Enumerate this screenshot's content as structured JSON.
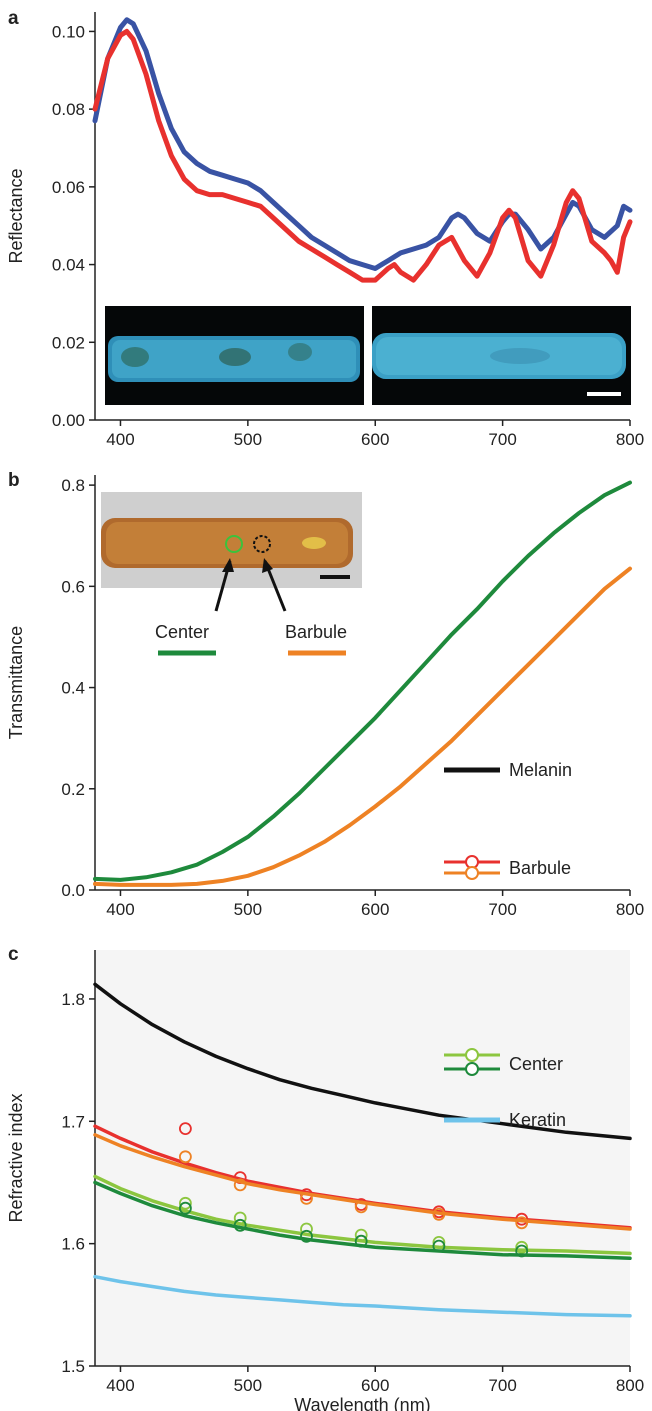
{
  "chart_data": [
    {
      "panel": "a",
      "type": "line",
      "xlabel": "",
      "ylabel": "Reflectance",
      "xlim": [
        380,
        800
      ],
      "ylim": [
        0.0,
        0.105
      ],
      "xticks": [
        400,
        500,
        600,
        700,
        800
      ],
      "xtick_labels": [
        "400",
        "500",
        "600",
        "700",
        "800"
      ],
      "yticks": [
        0.0,
        0.02,
        0.04,
        0.06,
        0.08,
        0.1
      ],
      "ytick_labels": [
        "0.00",
        "0.02",
        "0.04",
        "0.06",
        "0.08",
        "0.10"
      ],
      "inset": "two micrographs of blue-green barbules with a white scale bar",
      "series": [
        {
          "color": "#3953a4",
          "x": [
            380,
            390,
            400,
            405,
            410,
            420,
            430,
            440,
            450,
            460,
            470,
            480,
            490,
            500,
            510,
            520,
            530,
            540,
            550,
            560,
            570,
            580,
            590,
            600,
            610,
            620,
            630,
            640,
            650,
            660,
            665,
            670,
            680,
            690,
            700,
            705,
            710,
            720,
            730,
            740,
            750,
            755,
            760,
            770,
            780,
            790,
            795,
            800
          ],
          "y": [
            0.077,
            0.093,
            0.101,
            0.103,
            0.102,
            0.095,
            0.084,
            0.075,
            0.069,
            0.066,
            0.064,
            0.063,
            0.062,
            0.061,
            0.059,
            0.056,
            0.053,
            0.05,
            0.047,
            0.045,
            0.043,
            0.041,
            0.04,
            0.039,
            0.041,
            0.043,
            0.044,
            0.045,
            0.047,
            0.052,
            0.053,
            0.052,
            0.048,
            0.046,
            0.051,
            0.053,
            0.053,
            0.049,
            0.044,
            0.047,
            0.053,
            0.056,
            0.055,
            0.049,
            0.047,
            0.05,
            0.055,
            0.054
          ]
        },
        {
          "color": "#e8312e",
          "x": [
            380,
            390,
            400,
            405,
            410,
            420,
            430,
            440,
            450,
            460,
            470,
            480,
            490,
            500,
            510,
            520,
            530,
            540,
            550,
            560,
            570,
            580,
            590,
            600,
            610,
            615,
            620,
            630,
            640,
            650,
            660,
            670,
            680,
            690,
            700,
            705,
            710,
            720,
            730,
            740,
            750,
            755,
            760,
            770,
            780,
            785,
            790,
            795,
            800
          ],
          "y": [
            0.08,
            0.093,
            0.099,
            0.1,
            0.098,
            0.089,
            0.077,
            0.068,
            0.062,
            0.059,
            0.058,
            0.058,
            0.057,
            0.056,
            0.055,
            0.052,
            0.049,
            0.046,
            0.044,
            0.042,
            0.04,
            0.038,
            0.036,
            0.036,
            0.039,
            0.04,
            0.038,
            0.036,
            0.04,
            0.045,
            0.047,
            0.041,
            0.037,
            0.043,
            0.052,
            0.054,
            0.052,
            0.041,
            0.037,
            0.045,
            0.056,
            0.059,
            0.057,
            0.046,
            0.043,
            0.041,
            0.038,
            0.047,
            0.051
          ]
        }
      ]
    },
    {
      "panel": "b",
      "type": "line",
      "xlabel": "",
      "ylabel": "Transmittance",
      "xlim": [
        380,
        800
      ],
      "ylim": [
        0.0,
        0.82
      ],
      "xticks": [
        400,
        500,
        600,
        700,
        800
      ],
      "xtick_labels": [
        "400",
        "500",
        "600",
        "700",
        "800"
      ],
      "yticks": [
        0.0,
        0.2,
        0.4,
        0.6,
        0.8
      ],
      "ytick_labels": [
        "0.0",
        "0.2",
        "0.4",
        "0.6",
        "0.8"
      ],
      "inset": "micrograph of a brown barbule with circled center and barbule regions and a black scale bar",
      "series": [
        {
          "name": "Center",
          "color": "#1e8a3c",
          "x": [
            380,
            400,
            420,
            440,
            460,
            480,
            500,
            520,
            540,
            560,
            580,
            600,
            620,
            640,
            660,
            680,
            700,
            720,
            740,
            760,
            780,
            800
          ],
          "y": [
            0.022,
            0.02,
            0.025,
            0.035,
            0.05,
            0.075,
            0.105,
            0.145,
            0.19,
            0.24,
            0.29,
            0.34,
            0.395,
            0.45,
            0.505,
            0.555,
            0.61,
            0.66,
            0.705,
            0.745,
            0.78,
            0.805
          ]
        },
        {
          "name": "Barbule",
          "color": "#ee8224",
          "x": [
            380,
            400,
            420,
            440,
            460,
            480,
            500,
            520,
            540,
            560,
            580,
            600,
            620,
            640,
            660,
            680,
            700,
            720,
            740,
            760,
            780,
            800
          ],
          "y": [
            0.012,
            0.01,
            0.01,
            0.01,
            0.012,
            0.018,
            0.028,
            0.045,
            0.068,
            0.095,
            0.128,
            0.165,
            0.205,
            0.25,
            0.295,
            0.345,
            0.395,
            0.445,
            0.495,
            0.545,
            0.595,
            0.635
          ]
        }
      ]
    },
    {
      "panel": "c",
      "type": "line",
      "xlabel": "Wavelength (nm)",
      "ylabel": "Refractive index",
      "xlim": [
        380,
        800
      ],
      "ylim": [
        1.5,
        1.84
      ],
      "xticks": [
        400,
        500,
        600,
        700,
        800
      ],
      "xtick_labels": [
        "400",
        "500",
        "600",
        "700",
        "800"
      ],
      "yticks": [
        1.5,
        1.6,
        1.7,
        1.8
      ],
      "ytick_labels": [
        "1.5",
        "1.6",
        "1.7",
        "1.8"
      ],
      "series": [
        {
          "name": "Melanin",
          "color": "#111111",
          "x": [
            380,
            400,
            425,
            450,
            475,
            500,
            525,
            550,
            575,
            600,
            650,
            700,
            750,
            800
          ],
          "y": [
            1.812,
            1.796,
            1.779,
            1.765,
            1.753,
            1.743,
            1.734,
            1.727,
            1.721,
            1.715,
            1.705,
            1.698,
            1.691,
            1.686
          ]
        },
        {
          "name": "Barbule",
          "color": "#e8312e",
          "x": [
            380,
            400,
            425,
            450,
            475,
            500,
            525,
            550,
            575,
            600,
            650,
            700,
            750,
            800
          ],
          "y": [
            1.696,
            1.686,
            1.675,
            1.666,
            1.658,
            1.651,
            1.646,
            1.641,
            1.637,
            1.633,
            1.626,
            1.621,
            1.617,
            1.613
          ],
          "points": {
            "x": [
              451,
              494,
              546,
              589,
              650,
              715
            ],
            "y": [
              1.694,
              1.654,
              1.64,
              1.632,
              1.626,
              1.62
            ]
          }
        },
        {
          "name": "Barbule",
          "color": "#ee8224",
          "x": [
            380,
            400,
            425,
            450,
            475,
            500,
            525,
            550,
            575,
            600,
            650,
            700,
            750,
            800
          ],
          "y": [
            1.689,
            1.68,
            1.671,
            1.663,
            1.656,
            1.649,
            1.644,
            1.64,
            1.636,
            1.632,
            1.625,
            1.62,
            1.616,
            1.612
          ],
          "points": {
            "x": [
              451,
              494,
              546,
              589,
              650,
              715
            ],
            "y": [
              1.671,
              1.648,
              1.637,
              1.63,
              1.624,
              1.617
            ]
          }
        },
        {
          "name": "Center",
          "color": "#8cc63f",
          "x": [
            380,
            400,
            425,
            450,
            475,
            500,
            525,
            550,
            575,
            600,
            650,
            700,
            750,
            800
          ],
          "y": [
            1.655,
            1.645,
            1.635,
            1.627,
            1.62,
            1.615,
            1.611,
            1.607,
            1.604,
            1.601,
            1.597,
            1.595,
            1.594,
            1.592
          ],
          "points": {
            "x": [
              451,
              494,
              546,
              589,
              650,
              715
            ],
            "y": [
              1.633,
              1.621,
              1.612,
              1.607,
              1.601,
              1.597
            ]
          }
        },
        {
          "name": "Center",
          "color": "#1e8a3c",
          "x": [
            380,
            400,
            425,
            450,
            475,
            500,
            525,
            550,
            575,
            600,
            650,
            700,
            750,
            800
          ],
          "y": [
            1.65,
            1.641,
            1.631,
            1.623,
            1.617,
            1.612,
            1.607,
            1.603,
            1.6,
            1.597,
            1.594,
            1.591,
            1.59,
            1.588
          ],
          "points": {
            "x": [
              451,
              494,
              546,
              589,
              650,
              715
            ],
            "y": [
              1.629,
              1.615,
              1.606,
              1.602,
              1.598,
              1.594
            ]
          }
        },
        {
          "name": "Keratin",
          "color": "#6ec3ea",
          "x": [
            380,
            400,
            425,
            450,
            475,
            500,
            525,
            550,
            575,
            600,
            650,
            700,
            750,
            800
          ],
          "y": [
            1.573,
            1.569,
            1.565,
            1.561,
            1.558,
            1.556,
            1.554,
            1.552,
            1.55,
            1.549,
            1.546,
            1.544,
            1.542,
            1.541
          ]
        }
      ],
      "legend": [
        "Melanin",
        "Barbule",
        "Center",
        "Keratin"
      ]
    }
  ],
  "panel_labels": {
    "a": "a",
    "b": "b",
    "c": "c"
  }
}
